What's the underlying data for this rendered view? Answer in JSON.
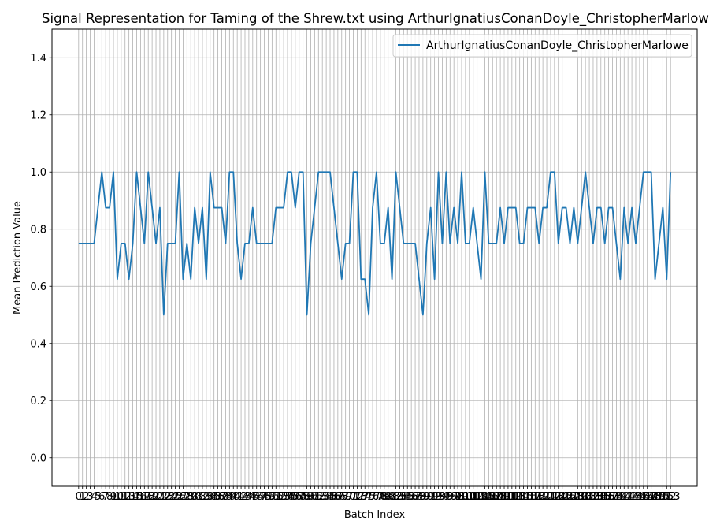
{
  "chart_data": {
    "type": "line",
    "title": "Signal Representation for Taming of the Shrew.txt using ArthurIgnatiusConanDoyle_ChristopherMarlowe",
    "xlabel": "Batch Index",
    "ylabel": "Mean Prediction Value",
    "ylim": [
      -0.1,
      1.5
    ],
    "yticks": [
      "0.0",
      "0.2",
      "0.4",
      "0.6",
      "0.8",
      "1.0",
      "1.2",
      "1.4"
    ],
    "grid": true,
    "legend": "top-right",
    "x_first": 0,
    "x_last": 153,
    "x_tick_labels": [
      "0",
      "1",
      "2",
      "3",
      "4",
      "5",
      "6",
      "7",
      "8",
      "9",
      "10",
      "11",
      "12",
      "13",
      "14",
      "15",
      "16",
      "17",
      "18",
      "19",
      "20",
      "21",
      "22",
      "23",
      "24",
      "25",
      "26",
      "27",
      "28",
      "29",
      "30",
      "31",
      "32",
      "33",
      "34",
      "35",
      "36",
      "37",
      "38",
      "39",
      "40",
      "41",
      "42",
      "43",
      "44",
      "45",
      "46",
      "47",
      "48",
      "49",
      "50",
      "51",
      "52",
      "53",
      "54",
      "55",
      "56",
      "57",
      "58",
      "59",
      "60",
      "61",
      "62",
      "63",
      "64",
      "65",
      "66",
      "67",
      "68",
      "69",
      "70",
      "71",
      "72",
      "73",
      "74",
      "75",
      "76",
      "77",
      "78",
      "79",
      "80",
      "81",
      "82",
      "83",
      "84",
      "85",
      "86",
      "87",
      "88",
      "89",
      "90",
      "91",
      "92",
      "93",
      "94",
      "95",
      "96",
      "97",
      "98",
      "99",
      "100",
      "101",
      "102",
      "103",
      "104",
      "105",
      "106",
      "107",
      "108",
      "109",
      "110",
      "111",
      "112",
      "113",
      "114",
      "115",
      "116",
      "117",
      "118",
      "119",
      "120",
      "121",
      "122",
      "123",
      "124",
      "125",
      "126",
      "127",
      "128",
      "129",
      "130",
      "131",
      "132",
      "133",
      "134",
      "135",
      "136",
      "137",
      "138",
      "139",
      "140",
      "141",
      "142",
      "143",
      "144",
      "145",
      "146",
      "147",
      "148",
      "149",
      "150",
      "151",
      "152",
      "153"
    ],
    "series": [
      {
        "name": "ArthurIgnatiusConanDoyle_ChristopherMarlowe",
        "color": "#1f77b4",
        "values": [
          0.75,
          0.75,
          0.75,
          0.75,
          0.75,
          0.875,
          1.0,
          0.875,
          0.875,
          1.0,
          0.625,
          0.75,
          0.75,
          0.625,
          0.75,
          1.0,
          0.875,
          0.75,
          1.0,
          0.875,
          0.75,
          0.875,
          0.5,
          0.75,
          0.75,
          0.75,
          1.0,
          0.625,
          0.75,
          0.625,
          0.875,
          0.75,
          0.875,
          0.625,
          1.0,
          0.875,
          0.875,
          0.875,
          0.75,
          1.0,
          1.0,
          0.75,
          0.625,
          0.75,
          0.75,
          0.875,
          0.75,
          0.75,
          0.75,
          0.75,
          0.75,
          0.875,
          0.875,
          0.875,
          1.0,
          1.0,
          0.875,
          1.0,
          1.0,
          0.5,
          0.75,
          0.875,
          1.0,
          1.0,
          1.0,
          1.0,
          0.875,
          0.75,
          0.625,
          0.75,
          0.75,
          1.0,
          1.0,
          0.625,
          0.625,
          0.5,
          0.875,
          1.0,
          0.75,
          0.75,
          0.875,
          0.625,
          1.0,
          0.875,
          0.75,
          0.75,
          0.75,
          0.75,
          0.625,
          0.5,
          0.75,
          0.875,
          0.625,
          1.0,
          0.75,
          1.0,
          0.75,
          0.875,
          0.75,
          1.0,
          0.75,
          0.75,
          0.875,
          0.75,
          0.625,
          1.0,
          0.75,
          0.75,
          0.75,
          0.875,
          0.75,
          0.875,
          0.875,
          0.875,
          0.75,
          0.75,
          0.875,
          0.875,
          0.875,
          0.75,
          0.875,
          0.875,
          1.0,
          1.0,
          0.75,
          0.875,
          0.875,
          0.75,
          0.875,
          0.75,
          0.875,
          1.0,
          0.875,
          0.75,
          0.875,
          0.875,
          0.75,
          0.875,
          0.875,
          0.75,
          0.625,
          0.875,
          0.75,
          0.875,
          0.75,
          0.875,
          1.0,
          1.0,
          1.0,
          0.625,
          0.75,
          0.875,
          0.625,
          1.0
        ]
      }
    ]
  }
}
